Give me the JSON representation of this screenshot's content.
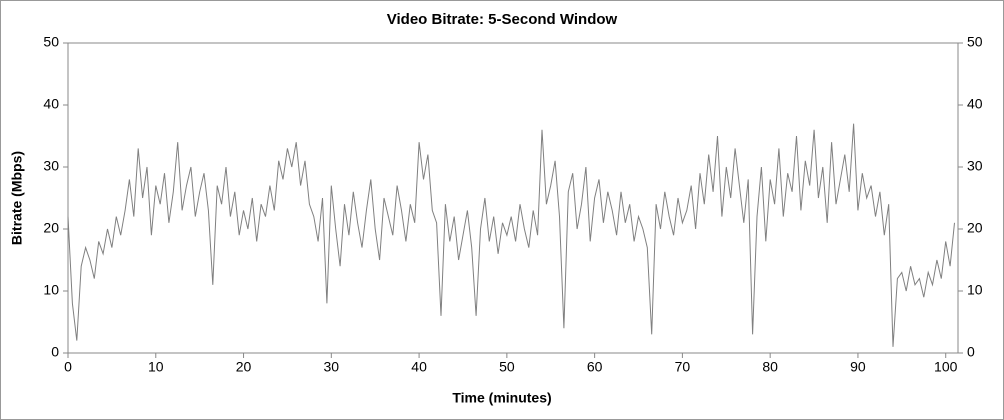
{
  "chart_data": {
    "type": "line",
    "title": "Video Bitrate: 5-Second Window",
    "x_label": "Time (minutes)",
    "y_label": "Bitrate (Mbps)",
    "color": "#808080",
    "xlim": [
      0,
      101.4
    ],
    "xticks": [
      0,
      10,
      20,
      30,
      40,
      50,
      60,
      70,
      80,
      90,
      100
    ],
    "ylim": [
      0,
      50
    ],
    "yticks": [
      0,
      10,
      20,
      30,
      40,
      50
    ],
    "x": [
      0,
      0.5,
      1,
      1.5,
      2,
      2.5,
      3,
      3.5,
      4,
      4.5,
      5,
      5.5,
      6,
      6.5,
      7,
      7.5,
      8,
      8.5,
      9,
      9.5,
      10,
      10.5,
      11,
      11.5,
      12,
      12.5,
      13,
      13.5,
      14,
      14.5,
      15,
      15.5,
      16,
      16.5,
      17,
      17.5,
      18,
      18.5,
      19,
      19.5,
      20,
      20.5,
      21,
      21.5,
      22,
      22.5,
      23,
      23.5,
      24,
      24.5,
      25,
      25.5,
      26,
      26.5,
      27,
      27.5,
      28,
      28.5,
      29,
      29.5,
      30,
      30.5,
      31,
      31.5,
      32,
      32.5,
      33,
      33.5,
      34,
      34.5,
      35,
      35.5,
      36,
      36.5,
      37,
      37.5,
      38,
      38.5,
      39,
      39.5,
      40,
      40.5,
      41,
      41.5,
      42,
      42.5,
      43,
      43.5,
      44,
      44.5,
      45,
      45.5,
      46,
      46.5,
      47,
      47.5,
      48,
      48.5,
      49,
      49.5,
      50,
      50.5,
      51,
      51.5,
      52,
      52.5,
      53,
      53.5,
      54,
      54.5,
      55,
      55.5,
      56,
      56.5,
      57,
      57.5,
      58,
      58.5,
      59,
      59.5,
      60,
      60.5,
      61,
      61.5,
      62,
      62.5,
      63,
      63.5,
      64,
      64.5,
      65,
      65.5,
      66,
      66.5,
      67,
      67.5,
      68,
      68.5,
      69,
      69.5,
      70,
      70.5,
      71,
      71.5,
      72,
      72.5,
      73,
      73.5,
      74,
      74.5,
      75,
      75.5,
      76,
      76.5,
      77,
      77.5,
      78,
      78.5,
      79,
      79.5,
      80,
      80.5,
      81,
      81.5,
      82,
      82.5,
      83,
      83.5,
      84,
      84.5,
      85,
      85.5,
      86,
      86.5,
      87,
      87.5,
      88,
      88.5,
      89,
      89.5,
      90,
      90.5,
      91,
      91.5,
      92,
      92.5,
      93,
      93.5,
      94,
      94.5,
      95,
      95.5,
      96,
      96.5,
      97,
      97.5,
      98,
      98.5,
      99,
      99.5,
      100,
      100.5,
      101
    ],
    "values": [
      22,
      8,
      2,
      14,
      17,
      15,
      12,
      18,
      16,
      20,
      17,
      22,
      19,
      23,
      28,
      22,
      33,
      25,
      30,
      19,
      27,
      24,
      29,
      21,
      26,
      34,
      23,
      27,
      30,
      22,
      26,
      29,
      23,
      11,
      27,
      24,
      30,
      22,
      26,
      19,
      23,
      20,
      25,
      18,
      24,
      22,
      27,
      23,
      31,
      28,
      33,
      30,
      34,
      27,
      31,
      24,
      22,
      18,
      25,
      8,
      27,
      20,
      14,
      24,
      19,
      26,
      21,
      17,
      23,
      28,
      20,
      15,
      25,
      22,
      19,
      27,
      23,
      18,
      24,
      21,
      34,
      28,
      32,
      23,
      21,
      6,
      24,
      18,
      22,
      15,
      19,
      23,
      17,
      6,
      20,
      25,
      18,
      22,
      16,
      21,
      19,
      22,
      18,
      24,
      20,
      17,
      23,
      19,
      36,
      24,
      27,
      31,
      22,
      4,
      26,
      29,
      20,
      24,
      30,
      18,
      25,
      28,
      21,
      26,
      23,
      19,
      26,
      21,
      24,
      18,
      22,
      20,
      17,
      3,
      24,
      20,
      26,
      22,
      19,
      25,
      21,
      23,
      27,
      20,
      29,
      24,
      32,
      26,
      35,
      22,
      30,
      25,
      33,
      27,
      21,
      28,
      3,
      22,
      30,
      18,
      28,
      24,
      33,
      22,
      29,
      26,
      35,
      23,
      31,
      27,
      36,
      25,
      30,
      21,
      34,
      24,
      28,
      32,
      26,
      37,
      23,
      29,
      25,
      27,
      22,
      26,
      19,
      24,
      1,
      12,
      13,
      10,
      14,
      11,
      12,
      9,
      13,
      11,
      15,
      12,
      18,
      14,
      21
    ]
  }
}
